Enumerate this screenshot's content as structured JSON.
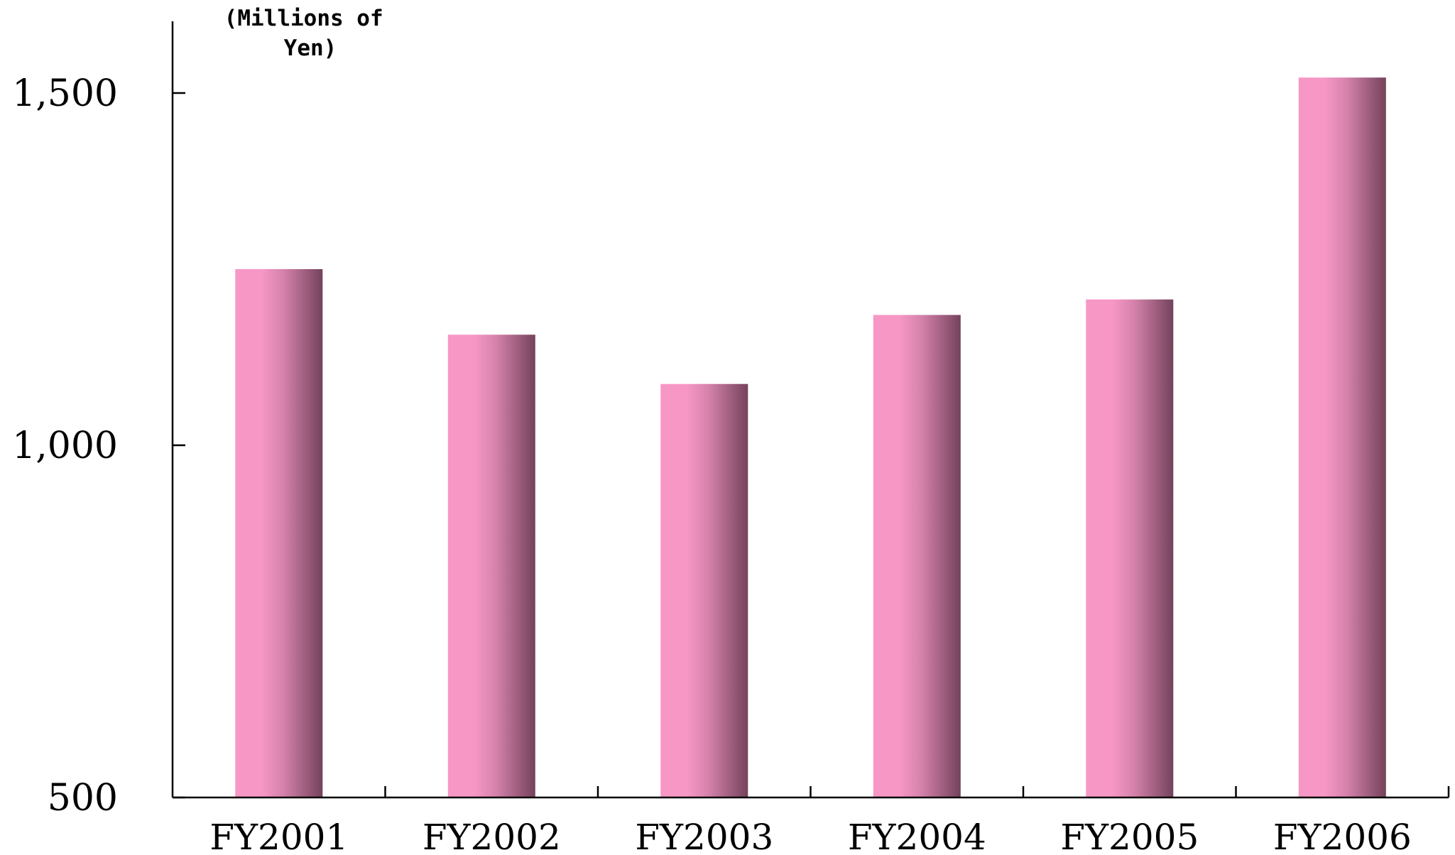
{
  "chart_data": {
    "type": "bar",
    "unit_label": [
      "(Millions of",
      "Yen)"
    ],
    "categories": [
      "FY2001",
      "FY2002",
      "FY2003",
      "FY2004",
      "FY2005",
      "FY2006"
    ],
    "values": [
      1250,
      1157,
      1087,
      1185,
      1207,
      1522
    ],
    "ylim": [
      500,
      1600
    ],
    "yticks": [
      500,
      1000,
      1500
    ],
    "ytick_labels": [
      "500",
      "1,000",
      "1,500"
    ],
    "colors": {
      "bar_light": "#f797c6",
      "bar_mid": "#d582ab",
      "bar_dark": "#74425b"
    },
    "grid": false
  }
}
